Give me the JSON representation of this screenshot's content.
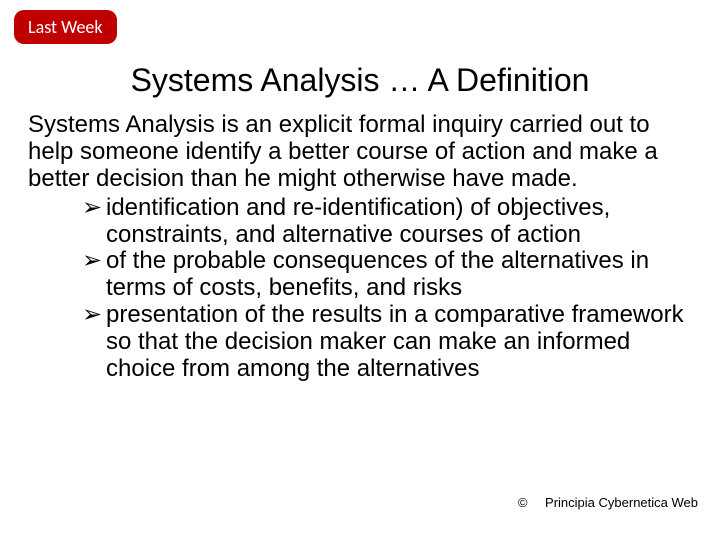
{
  "badge": {
    "label": "Last Week",
    "bg": "#c00000",
    "fg": "#ffffff"
  },
  "title": "Systems Analysis … A Definition",
  "intro": "Systems Analysis is an explicit formal inquiry carried out to help someone identify a better course of action and make a better decision than he might otherwise have made.",
  "bullet_marker": "➢",
  "bullets": [
    "identification and re-identification) of  objectives, constraints, and alternative courses of action",
    "of the probable consequences  of the alternatives in terms of costs, benefits, and risks",
    "presentation of the results in a comparative framework so that the decision maker can make an informed choice from among the alternatives"
  ],
  "citation": {
    "symbol": "©",
    "text": "Principia Cybernetica Web"
  },
  "fonts": {
    "title_size": 32,
    "body_size": 24,
    "badge_size": 18,
    "citation_size": 13
  }
}
